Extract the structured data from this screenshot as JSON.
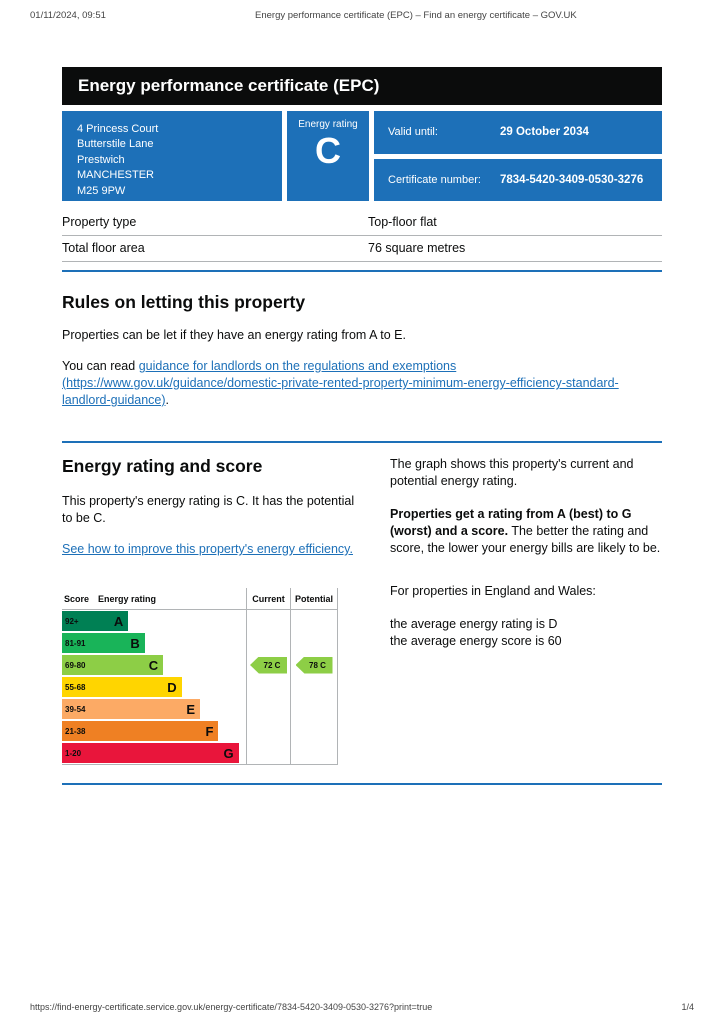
{
  "page": {
    "print_header": {
      "datetime": "01/11/2024, 09:51",
      "title": "Energy performance certificate (EPC) – Find an energy certificate – GOV.UK"
    },
    "print_footer": {
      "url": "https://find-energy-certificate.service.gov.uk/energy-certificate/7834-5420-3409-0530-3276?print=true",
      "page_number": "1/4"
    }
  },
  "banner": {
    "title": "Energy performance certificate (EPC)"
  },
  "summary": {
    "address_lines": [
      "4 Princess Court",
      "Butterstile Lane",
      "Prestwich",
      "MANCHESTER",
      "M25 9PW"
    ],
    "energy_rating_label": "Energy rating",
    "energy_rating": "C",
    "valid_until_label": "Valid until:",
    "valid_until_value": "29 October 2034",
    "certificate_number_label": "Certificate number:",
    "certificate_number_value": "7834-5420-3409-0530-3276"
  },
  "property_table": {
    "rows": [
      {
        "label": "Property type",
        "value": "Top-floor flat"
      },
      {
        "label": "Total floor area",
        "value": "76 square metres"
      }
    ]
  },
  "letting": {
    "heading": "Rules on letting this property",
    "paragraph": "Properties can be let if they have an energy rating from A to E.",
    "guidance_prefix": "You can read ",
    "guidance_link": "guidance for landlords on the regulations and exemptions (https://www.gov.uk/guidance/domestic-private-rented-property-minimum-energy-efficiency-standard-landlord-guidance)",
    "guidance_suffix": "."
  },
  "rating_section": {
    "heading": "Energy rating and score",
    "summary_text": "This property's energy rating is C. It has the potential to be C.",
    "improve_link": "See how to improve this property's energy efficiency.",
    "graph_intro": "The graph shows this property's current and potential energy rating.",
    "explain_bold": "Properties get a rating from A (best) to G (worst) and a score.",
    "explain_rest": " The better the rating and score, the lower your energy bills are likely to be.",
    "averages_intro": "For properties in England and Wales:",
    "average_rating_line": "the average energy rating is D",
    "average_score_line": "the average energy score is 60"
  },
  "chart": {
    "type": "epc-rating-bands",
    "headers": {
      "score": "Score",
      "rating": "Energy rating",
      "current": "Current",
      "potential": "Potential"
    },
    "bands": [
      {
        "score": "92+",
        "letter": "A",
        "color": "#008054",
        "width_pct": 36
      },
      {
        "score": "81-91",
        "letter": "B",
        "color": "#19b459",
        "width_pct": 45
      },
      {
        "score": "69-80",
        "letter": "C",
        "color": "#8dce46",
        "width_pct": 55
      },
      {
        "score": "55-68",
        "letter": "D",
        "color": "#ffd500",
        "width_pct": 65
      },
      {
        "score": "39-54",
        "letter": "E",
        "color": "#fcaa65",
        "width_pct": 75
      },
      {
        "score": "21-38",
        "letter": "F",
        "color": "#ef8023",
        "width_pct": 85
      },
      {
        "score": "1-20",
        "letter": "G",
        "color": "#e9153b",
        "width_pct": 96
      }
    ],
    "current": {
      "score": "72",
      "letter": "C",
      "band_letter": "C",
      "color": "#8dce46"
    },
    "potential": {
      "score": "78",
      "letter": "C",
      "band_letter": "C",
      "color": "#8dce46"
    }
  },
  "colors": {
    "govuk_blue": "#1d70b8",
    "banner_black": "#0b0c0c"
  }
}
